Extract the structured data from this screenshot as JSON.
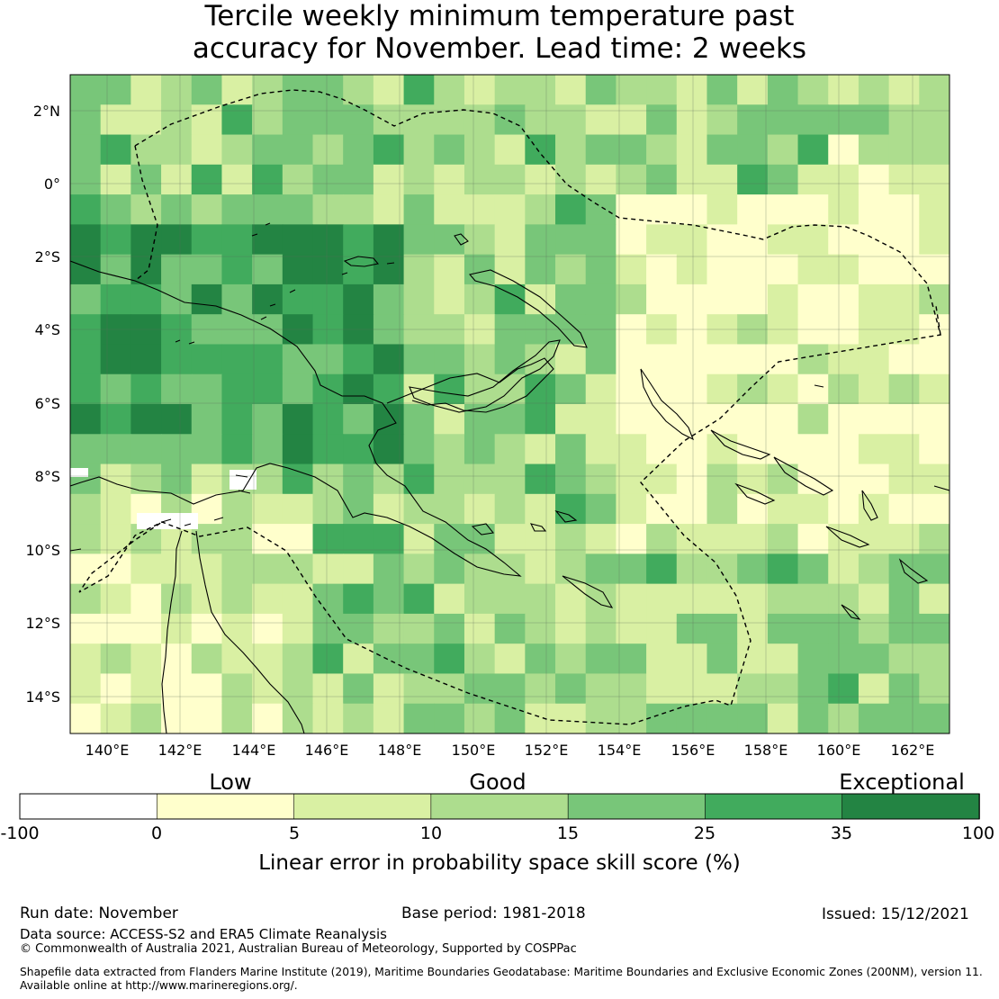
{
  "title": {
    "line1": "Tercile weekly minimum temperature past",
    "line2": "accuracy for November. Lead time: 2 weeks"
  },
  "map": {
    "lat_labels": [
      "2°N",
      "0°",
      "2°S",
      "4°S",
      "6°S",
      "8°S",
      "10°S",
      "12°S",
      "14°S"
    ],
    "lon_labels": [
      "140°E",
      "142°E",
      "144°E",
      "146°E",
      "148°E",
      "150°E",
      "152°E",
      "154°E",
      "156°E",
      "158°E",
      "160°E",
      "162°E"
    ],
    "lon_range": [
      139,
      163
    ],
    "lat_range": [
      -15,
      3
    ],
    "grid": true,
    "eez_boundary_style": "dashed",
    "coastline_color": "#000000",
    "dominant_class": "15-25"
  },
  "legend": {
    "category_labels": [
      "Low",
      "Good",
      "Exceptional"
    ],
    "ticks": [
      "-100",
      "0",
      "5",
      "10",
      "15",
      "25",
      "35",
      "100"
    ],
    "bins": [
      {
        "range": "-100 to 0",
        "color": "#ffffff"
      },
      {
        "range": "0 to 5",
        "color": "#ffffcc"
      },
      {
        "range": "5 to 10",
        "color": "#d9f0a3"
      },
      {
        "range": "10 to 15",
        "color": "#addd8e"
      },
      {
        "range": "15 to 25",
        "color": "#78c679"
      },
      {
        "range": "25 to 35",
        "color": "#41ab5d"
      },
      {
        "range": "35 to 100",
        "color": "#238443"
      }
    ],
    "title": "Linear error in probability space skill score (%)"
  },
  "footer": {
    "run_date": "Run date: November",
    "base_period": "Base period: 1981-2018",
    "issued": "Issued: 15/12/2021",
    "data_source": "Data source: ACCESS-S2 and ERA5 Climate Reanalysis",
    "copyright": "© Commonwealth of Australia 2021, Australian Bureau of Meteorology, Supported by COSPPac",
    "shapefile_line1": "Shapefile data extracted from Flanders Marine Institute (2019), Maritime Boundaries Geodatabase: Maritime Boundaries and Exclusive Economic Zones (200NM), version 11.",
    "shapefile_line2": "Available online at http://www.marineregions.org/."
  }
}
